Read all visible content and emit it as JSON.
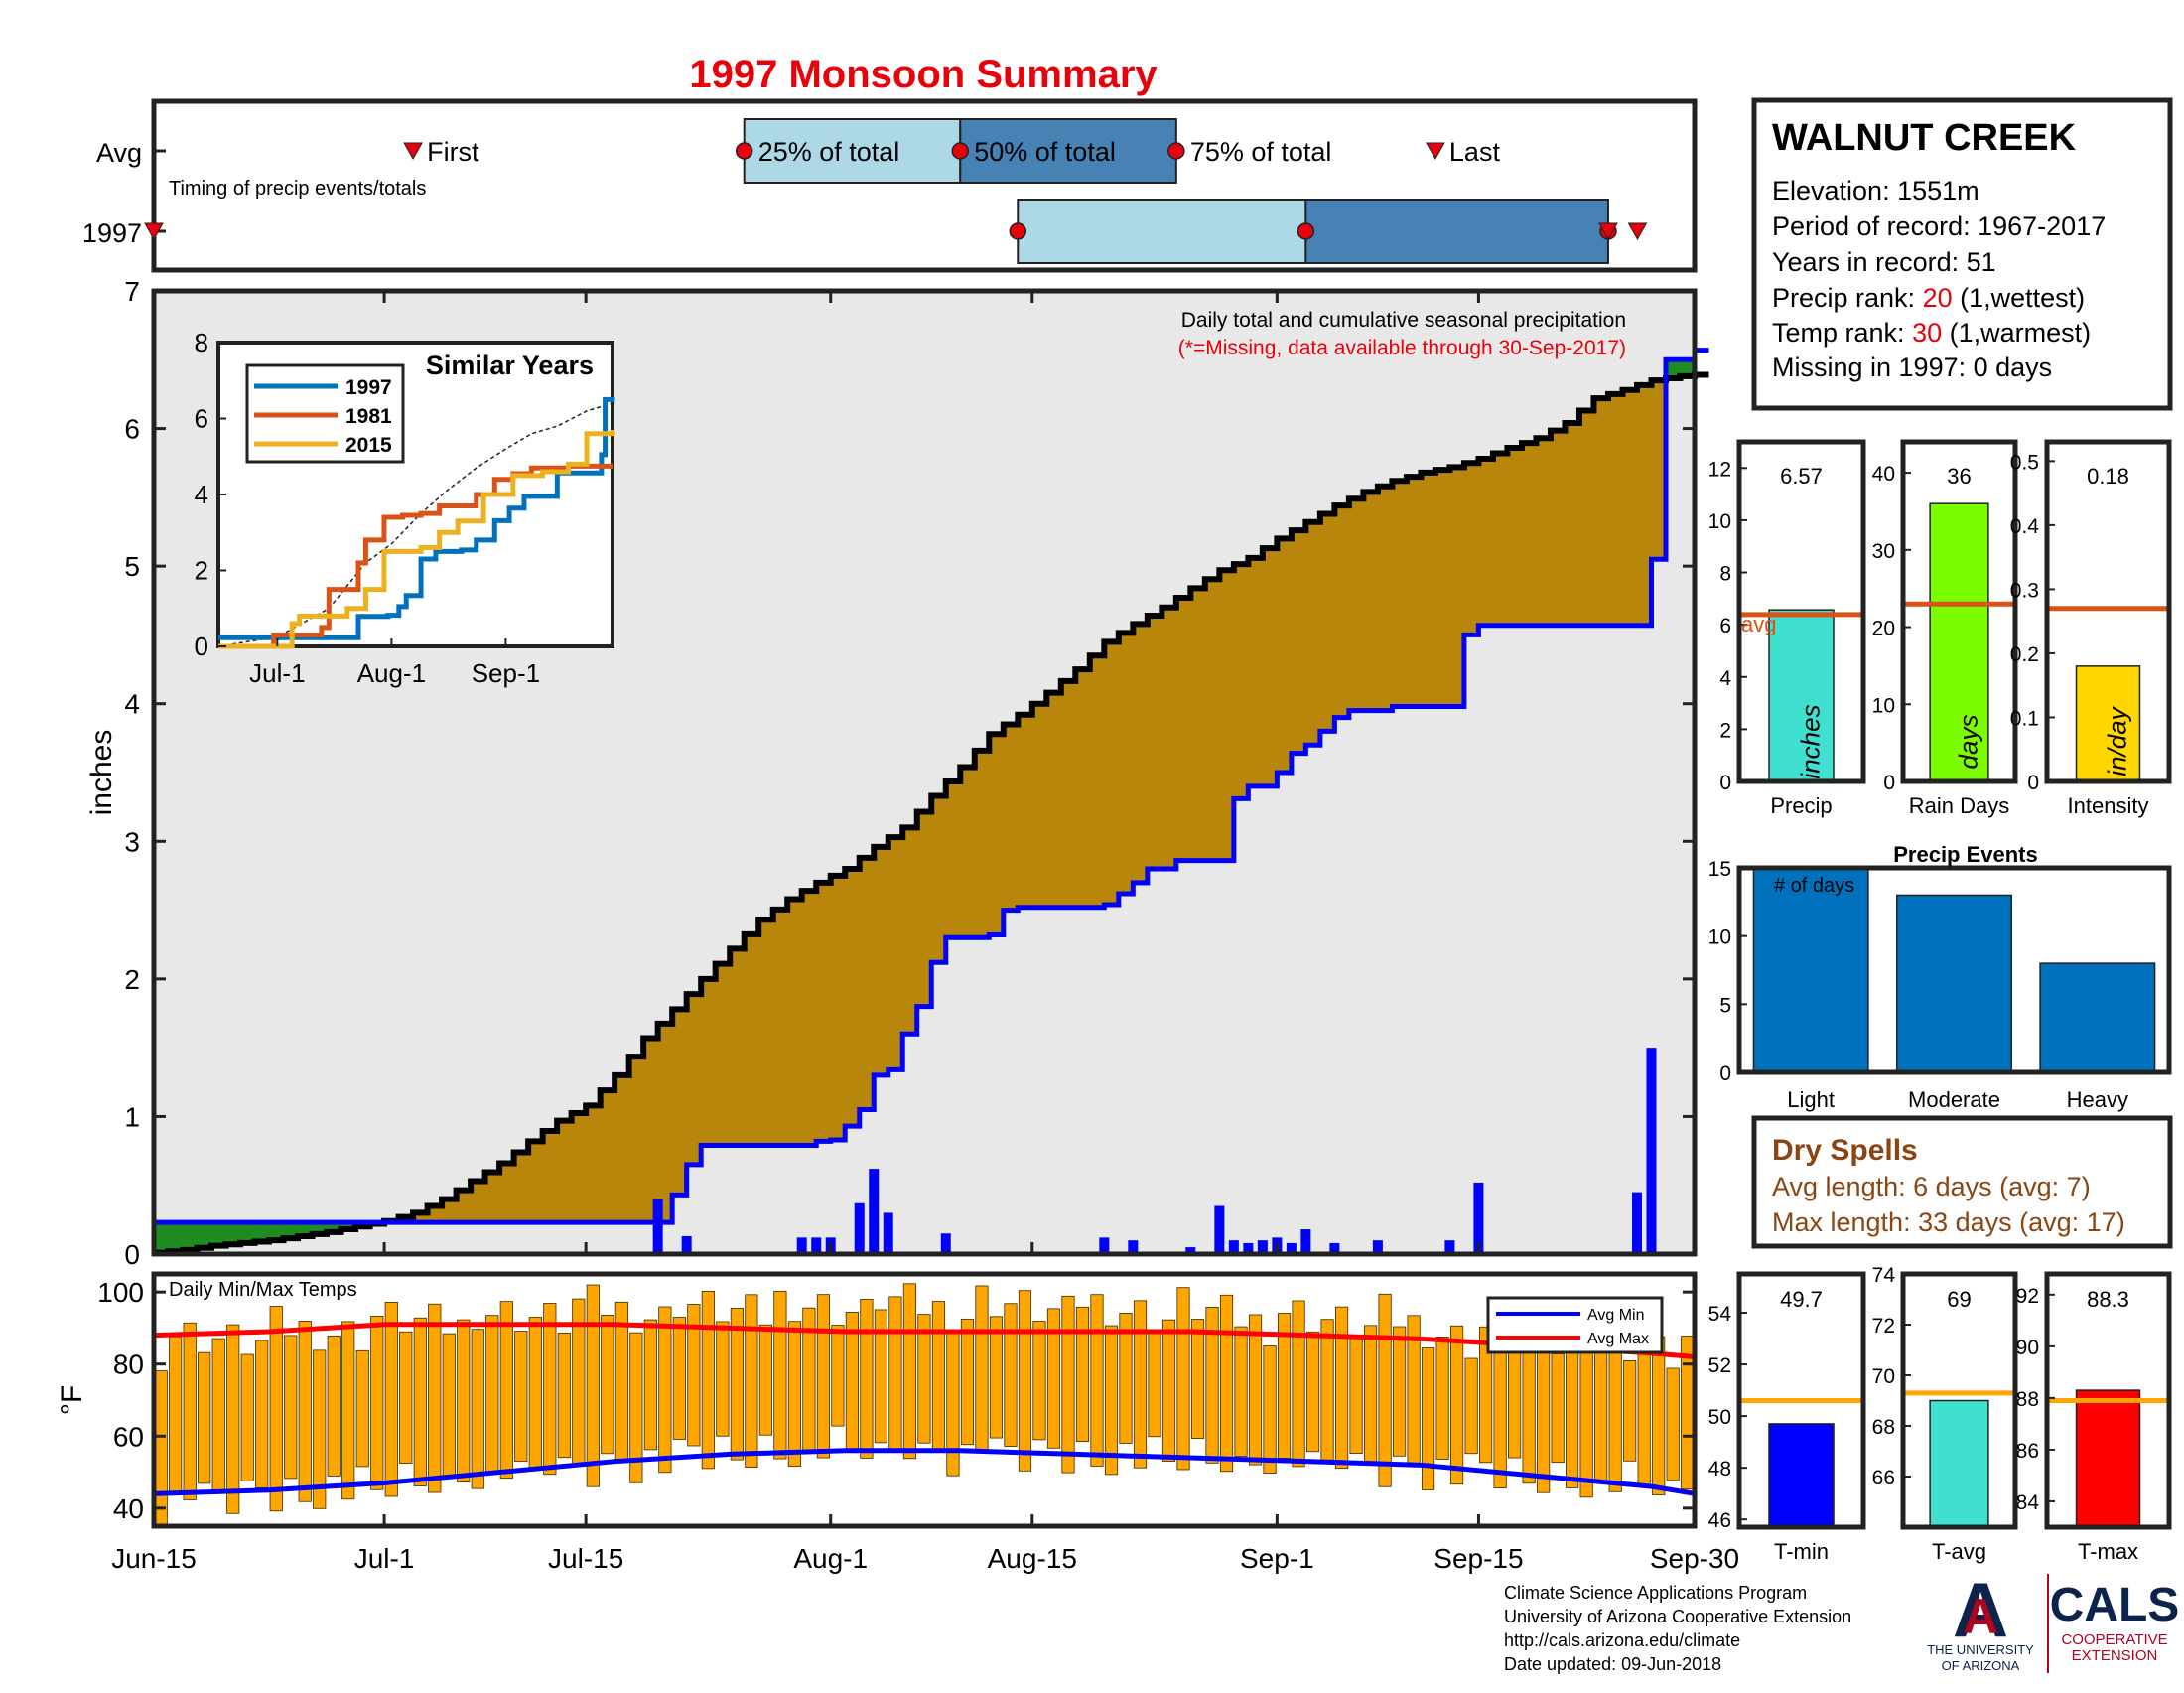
{
  "title": "1997 Monsoon Summary",
  "colors": {
    "title": "#e8000b",
    "cum_year": "#000000",
    "cum_avg": "#0000ff",
    "fill_above": "#b8860b",
    "fill_below": "#1e8c1e",
    "fill_base": "#e8e8e8",
    "daily_bar": "#0000ff",
    "temp_bar": "#ffa500",
    "avg_max": "#ff0000",
    "avg_min": "#0000ff",
    "box_light": "#add8e6",
    "box_dark": "#4682b4",
    "marker": "#e8000b",
    "inset_1997": "#0072bd",
    "inset_1981": "#d95319",
    "inset_2015": "#edb120",
    "avg_line_orange": "#d95319",
    "precip_bar": "#40e0d0",
    "raindays_bar": "#7cfc00",
    "intensity_bar": "#ffd700",
    "events_bar": "#0072bd",
    "tmin_bar": "#0000ff",
    "tavg_bar": "#40e0d0",
    "tmax_bar": "#ff0000",
    "temp_avg_line": "#ffa500",
    "dry_spells": "#8b4513",
    "logo_blue": "#0c234b",
    "logo_red": "#ab0520"
  },
  "timing": {
    "rows": [
      "Avg",
      "1997"
    ],
    "label": "Timing of precip events/totals",
    "first_label": "First",
    "last_label": "Last",
    "q25_label": "25% of total",
    "q50_label": "50% of total",
    "q75_label": "75% of total",
    "avg": {
      "first": 18,
      "q25": 41,
      "q50": 56,
      "q75": 71,
      "last": 89
    },
    "year": {
      "first": 0,
      "q25": 60,
      "q50": 80,
      "q75": 101,
      "last": 102
    }
  },
  "station": {
    "name": "WALNUT CREEK",
    "elevation": "Elevation: 1551m",
    "period": "Period of record: 1967-2017",
    "years": "Years in record: 51",
    "precip_rank_prefix": "Precip rank: ",
    "precip_rank": "20",
    "precip_rank_suffix": " (1,wettest)",
    "temp_rank_prefix": "Temp rank: ",
    "temp_rank": "30",
    "temp_rank_suffix": " (1,warmest)",
    "missing": "Missing in 1997: 0 days"
  },
  "dry_spells": {
    "title": "Dry Spells",
    "avg_length": "Avg length: 6 days (avg: 7)",
    "max_length": "Max length: 33 days (avg: 17)"
  },
  "footer": {
    "line1": "Climate Science Applications Program",
    "line2": "University of Arizona Cooperative Extension",
    "line3": "http://cals.arizona.edu/climate",
    "line4": " Date updated: 09-Jun-2018"
  },
  "logos": {
    "ua_letter": "A",
    "ua_line1": "THE UNIVERSITY",
    "ua_line2": "OF ARIZONA",
    "cals": "CALS",
    "cals_line1": "COOPERATIVE",
    "cals_line2": "EXTENSION"
  },
  "chart_data": [
    {
      "id": "cumulative",
      "type": "area",
      "subtitle": "Daily total and cumulative seasonal precipitation",
      "note": "(*=Missing, data available through 30-Sep-2017)",
      "ylabel": "inches",
      "xlim": [
        0,
        107
      ],
      "ylim": [
        0,
        7
      ],
      "yticks": [
        0,
        1,
        2,
        3,
        4,
        5,
        6,
        7
      ],
      "xticks": [
        {
          "day": 0,
          "label": "Jun-15"
        },
        {
          "day": 16,
          "label": "Jul-1"
        },
        {
          "day": 30,
          "label": "Jul-15"
        },
        {
          "day": 47,
          "label": "Aug-1"
        },
        {
          "day": 61,
          "label": "Aug-15"
        },
        {
          "day": 78,
          "label": "Sep-1"
        },
        {
          "day": 92,
          "label": "Sep-15"
        },
        {
          "day": 107,
          "label": "Sep-30"
        }
      ],
      "avg_cumulative": {
        "day": [
          0,
          2,
          4,
          6,
          8,
          10,
          12,
          14,
          16,
          18,
          20,
          22,
          24,
          26,
          28,
          30,
          32,
          34,
          36,
          38,
          40,
          42,
          44,
          46,
          48,
          50,
          52,
          54,
          56,
          58,
          60,
          62,
          64,
          66,
          68,
          70,
          72,
          74,
          76,
          78,
          80,
          82,
          84,
          86,
          88,
          90,
          92,
          94,
          96,
          98,
          100,
          102,
          104,
          106,
          107
        ],
        "value": [
          0.01,
          0.03,
          0.06,
          0.08,
          0.1,
          0.13,
          0.16,
          0.2,
          0.24,
          0.3,
          0.4,
          0.53,
          0.66,
          0.82,
          0.97,
          1.08,
          1.3,
          1.57,
          1.78,
          2.0,
          2.22,
          2.43,
          2.58,
          2.7,
          2.8,
          2.96,
          3.1,
          3.33,
          3.54,
          3.78,
          3.92,
          4.08,
          4.25,
          4.45,
          4.58,
          4.7,
          4.84,
          4.97,
          5.06,
          5.2,
          5.32,
          5.44,
          5.54,
          5.62,
          5.68,
          5.72,
          5.78,
          5.86,
          5.93,
          6.04,
          6.22,
          6.28,
          6.35,
          6.38,
          6.39
        ]
      },
      "year_cumulative": {
        "day": [
          0,
          35,
          36,
          37,
          38,
          46,
          47,
          48,
          49,
          50,
          51,
          52,
          53,
          54,
          55,
          58,
          59,
          60,
          66,
          67,
          68,
          69,
          70,
          71,
          72,
          75,
          76,
          78,
          79,
          80,
          81,
          82,
          83,
          86,
          90,
          91,
          92,
          93,
          103,
          104,
          105,
          107
        ],
        "value": [
          0.23,
          0.23,
          0.43,
          0.65,
          0.79,
          0.82,
          0.83,
          0.93,
          1.05,
          1.3,
          1.34,
          1.6,
          1.8,
          2.12,
          2.3,
          2.32,
          2.5,
          2.52,
          2.54,
          2.62,
          2.7,
          2.8,
          2.8,
          2.86,
          2.86,
          3.31,
          3.4,
          3.5,
          3.64,
          3.7,
          3.8,
          3.9,
          3.95,
          3.98,
          3.98,
          4.5,
          4.57,
          4.57,
          4.57,
          5.05,
          6.5,
          6.57
        ]
      },
      "daily": {
        "day": [
          35,
          37,
          45,
          46,
          47,
          49,
          50,
          51,
          55,
          66,
          68,
          72,
          74,
          75,
          76,
          77,
          78,
          79,
          80,
          82,
          85,
          90,
          92,
          103,
          104
        ],
        "value": [
          0.4,
          0.13,
          0.12,
          0.12,
          0.12,
          0.37,
          0.62,
          0.3,
          0.15,
          0.12,
          0.1,
          0.05,
          0.35,
          0.1,
          0.08,
          0.1,
          0.12,
          0.08,
          0.18,
          0.08,
          0.1,
          0.1,
          0.52,
          0.45,
          1.5
        ]
      }
    },
    {
      "id": "similar_years",
      "type": "line",
      "title": "Similar Years",
      "xlim": [
        0,
        107
      ],
      "ylim": [
        0,
        8
      ],
      "yticks": [
        0,
        2,
        4,
        6,
        8
      ],
      "xticks": [
        {
          "day": 16,
          "label": "Jul-1"
        },
        {
          "day": 47,
          "label": "Aug-1"
        },
        {
          "day": 78,
          "label": "Sep-1"
        }
      ],
      "series": [
        {
          "name": "1997",
          "day": [
            0,
            35,
            38,
            46,
            49,
            51,
            55,
            59,
            66,
            70,
            75,
            79,
            83,
            92,
            104,
            105,
            107
          ],
          "value": [
            0.23,
            0.23,
            0.79,
            0.82,
            1.05,
            1.34,
            2.3,
            2.5,
            2.54,
            2.8,
            3.31,
            3.64,
            3.95,
            4.57,
            5.05,
            6.5,
            6.57
          ]
        },
        {
          "name": "1981",
          "day": [
            0,
            15,
            28,
            30,
            38,
            40,
            45,
            50,
            55,
            60,
            70,
            75,
            80,
            85,
            95,
            107
          ],
          "value": [
            0,
            0.3,
            0.5,
            1.5,
            2.2,
            2.8,
            3.4,
            3.45,
            3.5,
            3.7,
            4.0,
            4.4,
            4.55,
            4.7,
            4.75,
            4.75
          ]
        },
        {
          "name": "2015",
          "day": [
            0,
            20,
            22,
            35,
            40,
            45,
            55,
            60,
            65,
            72,
            80,
            88,
            95,
            100,
            107
          ],
          "value": [
            0,
            0.6,
            0.8,
            1.0,
            1.5,
            2.5,
            2.6,
            3.0,
            3.3,
            4.0,
            4.5,
            4.6,
            4.8,
            5.6,
            5.7
          ]
        }
      ],
      "avg": {
        "day": [
          0,
          16,
          30,
          40,
          47,
          55,
          62,
          70,
          78,
          85,
          92,
          100,
          107
        ],
        "value": [
          0,
          0.25,
          1.0,
          2.2,
          2.7,
          3.5,
          4.1,
          4.7,
          5.2,
          5.6,
          5.8,
          6.2,
          6.4
        ]
      }
    },
    {
      "id": "temps",
      "type": "bar",
      "title": "Daily Min/Max Temps",
      "ylabel": "°F",
      "xlim": [
        0,
        107
      ],
      "ylim": [
        35,
        105
      ],
      "yticks": [
        40,
        60,
        80,
        100
      ],
      "legend": [
        "Avg Min",
        "Avg Max"
      ],
      "legend_placement": "top-right",
      "avg_max": {
        "day": [
          0,
          8,
          16,
          24,
          32,
          40,
          48,
          56,
          64,
          72,
          80,
          88,
          96,
          104,
          107
        ],
        "value": [
          88,
          89,
          91,
          91,
          91,
          90,
          89,
          89,
          89,
          89,
          88,
          87,
          85,
          83,
          82
        ]
      },
      "avg_min": {
        "day": [
          0,
          8,
          16,
          24,
          32,
          40,
          48,
          56,
          64,
          72,
          80,
          88,
          96,
          104,
          107
        ],
        "value": [
          44,
          45,
          47,
          50,
          53,
          55,
          56,
          56,
          55,
          54,
          53,
          52,
          49,
          46,
          44
        ]
      },
      "max_base": [
        86,
        88,
        91,
        93,
        95,
        95,
        96,
        96,
        96,
        95,
        93,
        92,
        88,
        86,
        84
      ],
      "min_base": [
        42,
        44,
        46,
        49,
        52,
        55,
        56,
        56,
        55,
        54,
        53,
        52,
        50,
        47,
        45
      ]
    },
    {
      "id": "precip_gauge",
      "type": "bar",
      "categories": [
        "Precip"
      ],
      "values": [
        6.57
      ],
      "label": "6.57",
      "avg": 6.39,
      "avg_label": "avg",
      "unit": "inches",
      "ylim": [
        0,
        13
      ],
      "yticks": [
        0,
        2,
        4,
        6,
        8,
        10,
        12
      ]
    },
    {
      "id": "raindays_gauge",
      "type": "bar",
      "categories": [
        "Rain Days"
      ],
      "values": [
        36
      ],
      "label": "36",
      "avg": 23,
      "unit": "days",
      "ylim": [
        0,
        44
      ],
      "yticks": [
        0,
        10,
        20,
        30,
        40
      ]
    },
    {
      "id": "intensity_gauge",
      "type": "bar",
      "categories": [
        "Intensity"
      ],
      "values": [
        0.18
      ],
      "label": "0.18",
      "avg": 0.27,
      "unit": "in/day",
      "ylim": [
        0,
        0.53
      ],
      "yticks": [
        0,
        0.1,
        0.2,
        0.3,
        0.4,
        0.5
      ],
      "ytick_labels": [
        "0",
        "0.1",
        "0.2",
        "0.3",
        "0.4",
        "0.5"
      ]
    },
    {
      "id": "precip_events",
      "type": "bar",
      "title": "Precip Events",
      "annotation": "# of days",
      "categories": [
        "Light",
        "Moderate",
        "Heavy"
      ],
      "values": [
        15,
        13,
        8
      ],
      "ylim": [
        0,
        15
      ],
      "yticks": [
        0,
        5,
        10,
        15
      ]
    },
    {
      "id": "tmin_gauge",
      "type": "bar",
      "categories": [
        "T-min"
      ],
      "values": [
        49.7
      ],
      "label": "49.7",
      "avg": 50.6,
      "ylim": [
        45.7,
        55.5
      ],
      "yticks": [
        46,
        48,
        50,
        52,
        54
      ]
    },
    {
      "id": "tavg_gauge",
      "type": "bar",
      "categories": [
        "T-avg"
      ],
      "values": [
        69
      ],
      "label": "69",
      "avg": 69.3,
      "ylim": [
        64,
        74
      ],
      "yticks": [
        66,
        68,
        70,
        72,
        74
      ]
    },
    {
      "id": "tmax_gauge",
      "type": "bar",
      "categories": [
        "T-max"
      ],
      "values": [
        88.3
      ],
      "label": "88.3",
      "avg": 87.9,
      "ylim": [
        83,
        92.8
      ],
      "yticks": [
        84,
        86,
        88,
        90,
        92
      ]
    }
  ]
}
